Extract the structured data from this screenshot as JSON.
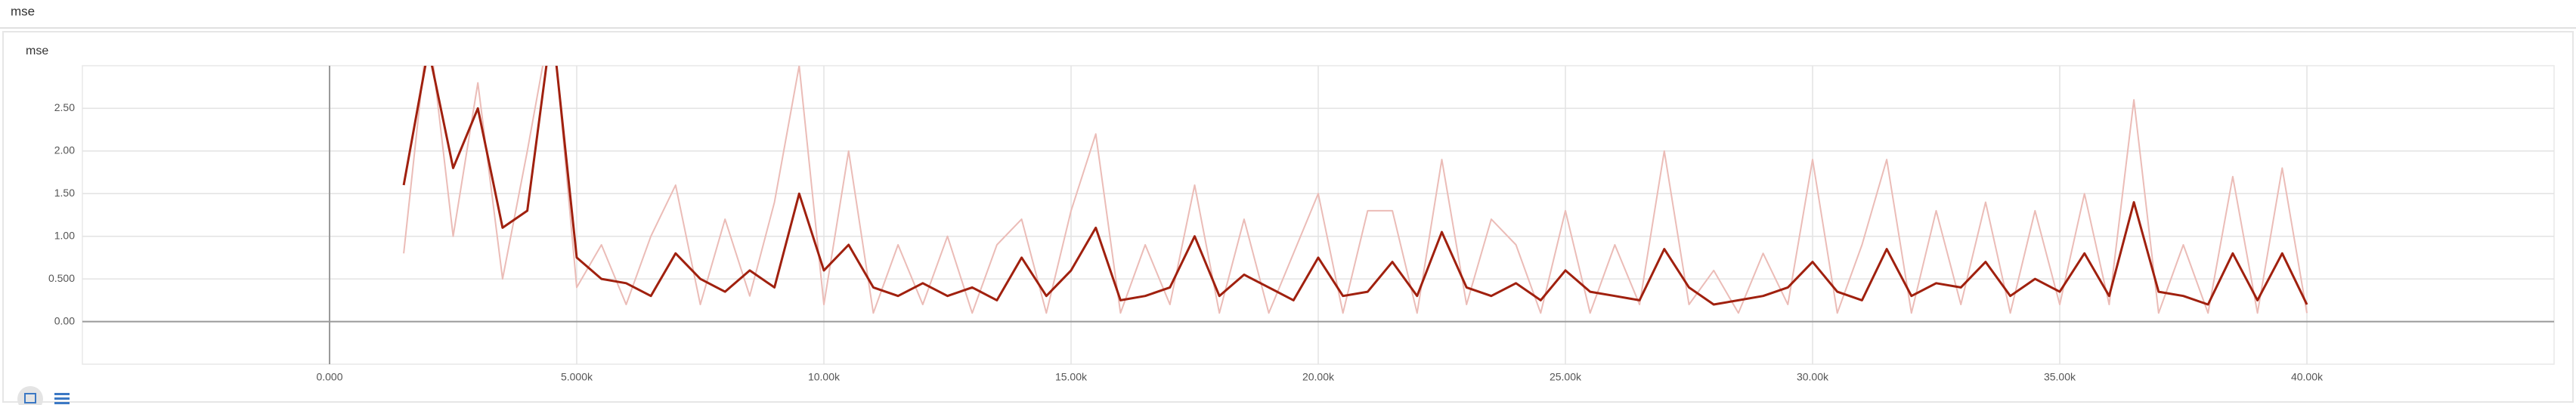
{
  "header": {
    "title": "mse"
  },
  "chart_data": {
    "type": "line",
    "title": "mse",
    "x": [
      1500,
      2000,
      2500,
      3000,
      3500,
      4000,
      4500,
      5000,
      5500,
      6000,
      6500,
      7000,
      7500,
      8000,
      8500,
      9000,
      9500,
      10000,
      10500,
      11000,
      11500,
      12000,
      12500,
      13000,
      13500,
      14000,
      14500,
      15000,
      15500,
      16000,
      16500,
      17000,
      17500,
      18000,
      18500,
      19000,
      19500,
      20000,
      20500,
      21000,
      21500,
      22000,
      22500,
      23000,
      23500,
      24000,
      24500,
      25000,
      25500,
      26000,
      26500,
      27000,
      27500,
      28000,
      28500,
      29000,
      29500,
      30000,
      30500,
      31000,
      31500,
      32000,
      32500,
      33000,
      33500,
      34000,
      34500,
      35000,
      35500,
      36000,
      36500,
      37000,
      37500,
      38000,
      38500,
      39000,
      39500,
      40000
    ],
    "series": [
      {
        "color": "#ebbcb7",
        "values": [
          0.8,
          3.5,
          1.0,
          2.8,
          0.5,
          2.0,
          3.6,
          0.4,
          0.9,
          0.2,
          1.0,
          1.6,
          0.2,
          1.2,
          0.3,
          1.4,
          3.0,
          0.2,
          2.0,
          0.1,
          0.9,
          0.2,
          1.0,
          0.1,
          0.9,
          1.2,
          0.1,
          1.3,
          2.2,
          0.1,
          0.9,
          0.2,
          1.6,
          0.1,
          1.2,
          0.1,
          0.8,
          1.5,
          0.1,
          1.3,
          1.3,
          0.1,
          1.9,
          0.2,
          1.2,
          0.9,
          0.1,
          1.3,
          0.1,
          0.9,
          0.2,
          2.0,
          0.2,
          0.6,
          0.1,
          0.8,
          0.2,
          1.9,
          0.1,
          0.9,
          1.9,
          0.1,
          1.3,
          0.2,
          1.4,
          0.1,
          1.3,
          0.2,
          1.5,
          0.2,
          2.6,
          0.1,
          0.9,
          0.1,
          1.7,
          0.1,
          1.8,
          0.1
        ]
      },
      {
        "color": "#a0200e",
        "values": [
          1.6,
          3.2,
          1.8,
          2.5,
          1.1,
          1.3,
          3.5,
          0.75,
          0.5,
          0.45,
          0.3,
          0.8,
          0.5,
          0.35,
          0.6,
          0.4,
          1.5,
          0.6,
          0.9,
          0.4,
          0.3,
          0.45,
          0.3,
          0.4,
          0.25,
          0.75,
          0.3,
          0.6,
          1.1,
          0.25,
          0.3,
          0.4,
          1.0,
          0.3,
          0.55,
          0.4,
          0.25,
          0.75,
          0.3,
          0.35,
          0.7,
          0.3,
          1.05,
          0.4,
          0.3,
          0.45,
          0.25,
          0.6,
          0.35,
          0.3,
          0.25,
          0.85,
          0.4,
          0.2,
          0.25,
          0.3,
          0.4,
          0.7,
          0.35,
          0.25,
          0.85,
          0.3,
          0.45,
          0.4,
          0.7,
          0.3,
          0.5,
          0.35,
          0.8,
          0.3,
          1.4,
          0.35,
          0.3,
          0.2,
          0.8,
          0.25,
          0.8,
          0.2
        ]
      }
    ],
    "xlim": [
      -5000,
      45000
    ],
    "ylim": [
      -0.5,
      3.0
    ],
    "xticks": [
      {
        "value": 0,
        "label": "0.000"
      },
      {
        "value": 5000,
        "label": "5.000k"
      },
      {
        "value": 10000,
        "label": "10.00k"
      },
      {
        "value": 15000,
        "label": "15.00k"
      },
      {
        "value": 20000,
        "label": "20.00k"
      },
      {
        "value": 25000,
        "label": "25.00k"
      },
      {
        "value": 30000,
        "label": "30.00k"
      },
      {
        "value": 35000,
        "label": "35.00k"
      },
      {
        "value": 40000,
        "label": "40.00k"
      }
    ],
    "yticks": [
      {
        "value": 0,
        "label": "0.00"
      },
      {
        "value": 0.5,
        "label": "0.500"
      },
      {
        "value": 1,
        "label": "1.00"
      },
      {
        "value": 1.5,
        "label": "1.50"
      },
      {
        "value": 2,
        "label": "2.00"
      },
      {
        "value": 2.5,
        "label": "2.50"
      }
    ],
    "grid": true
  }
}
